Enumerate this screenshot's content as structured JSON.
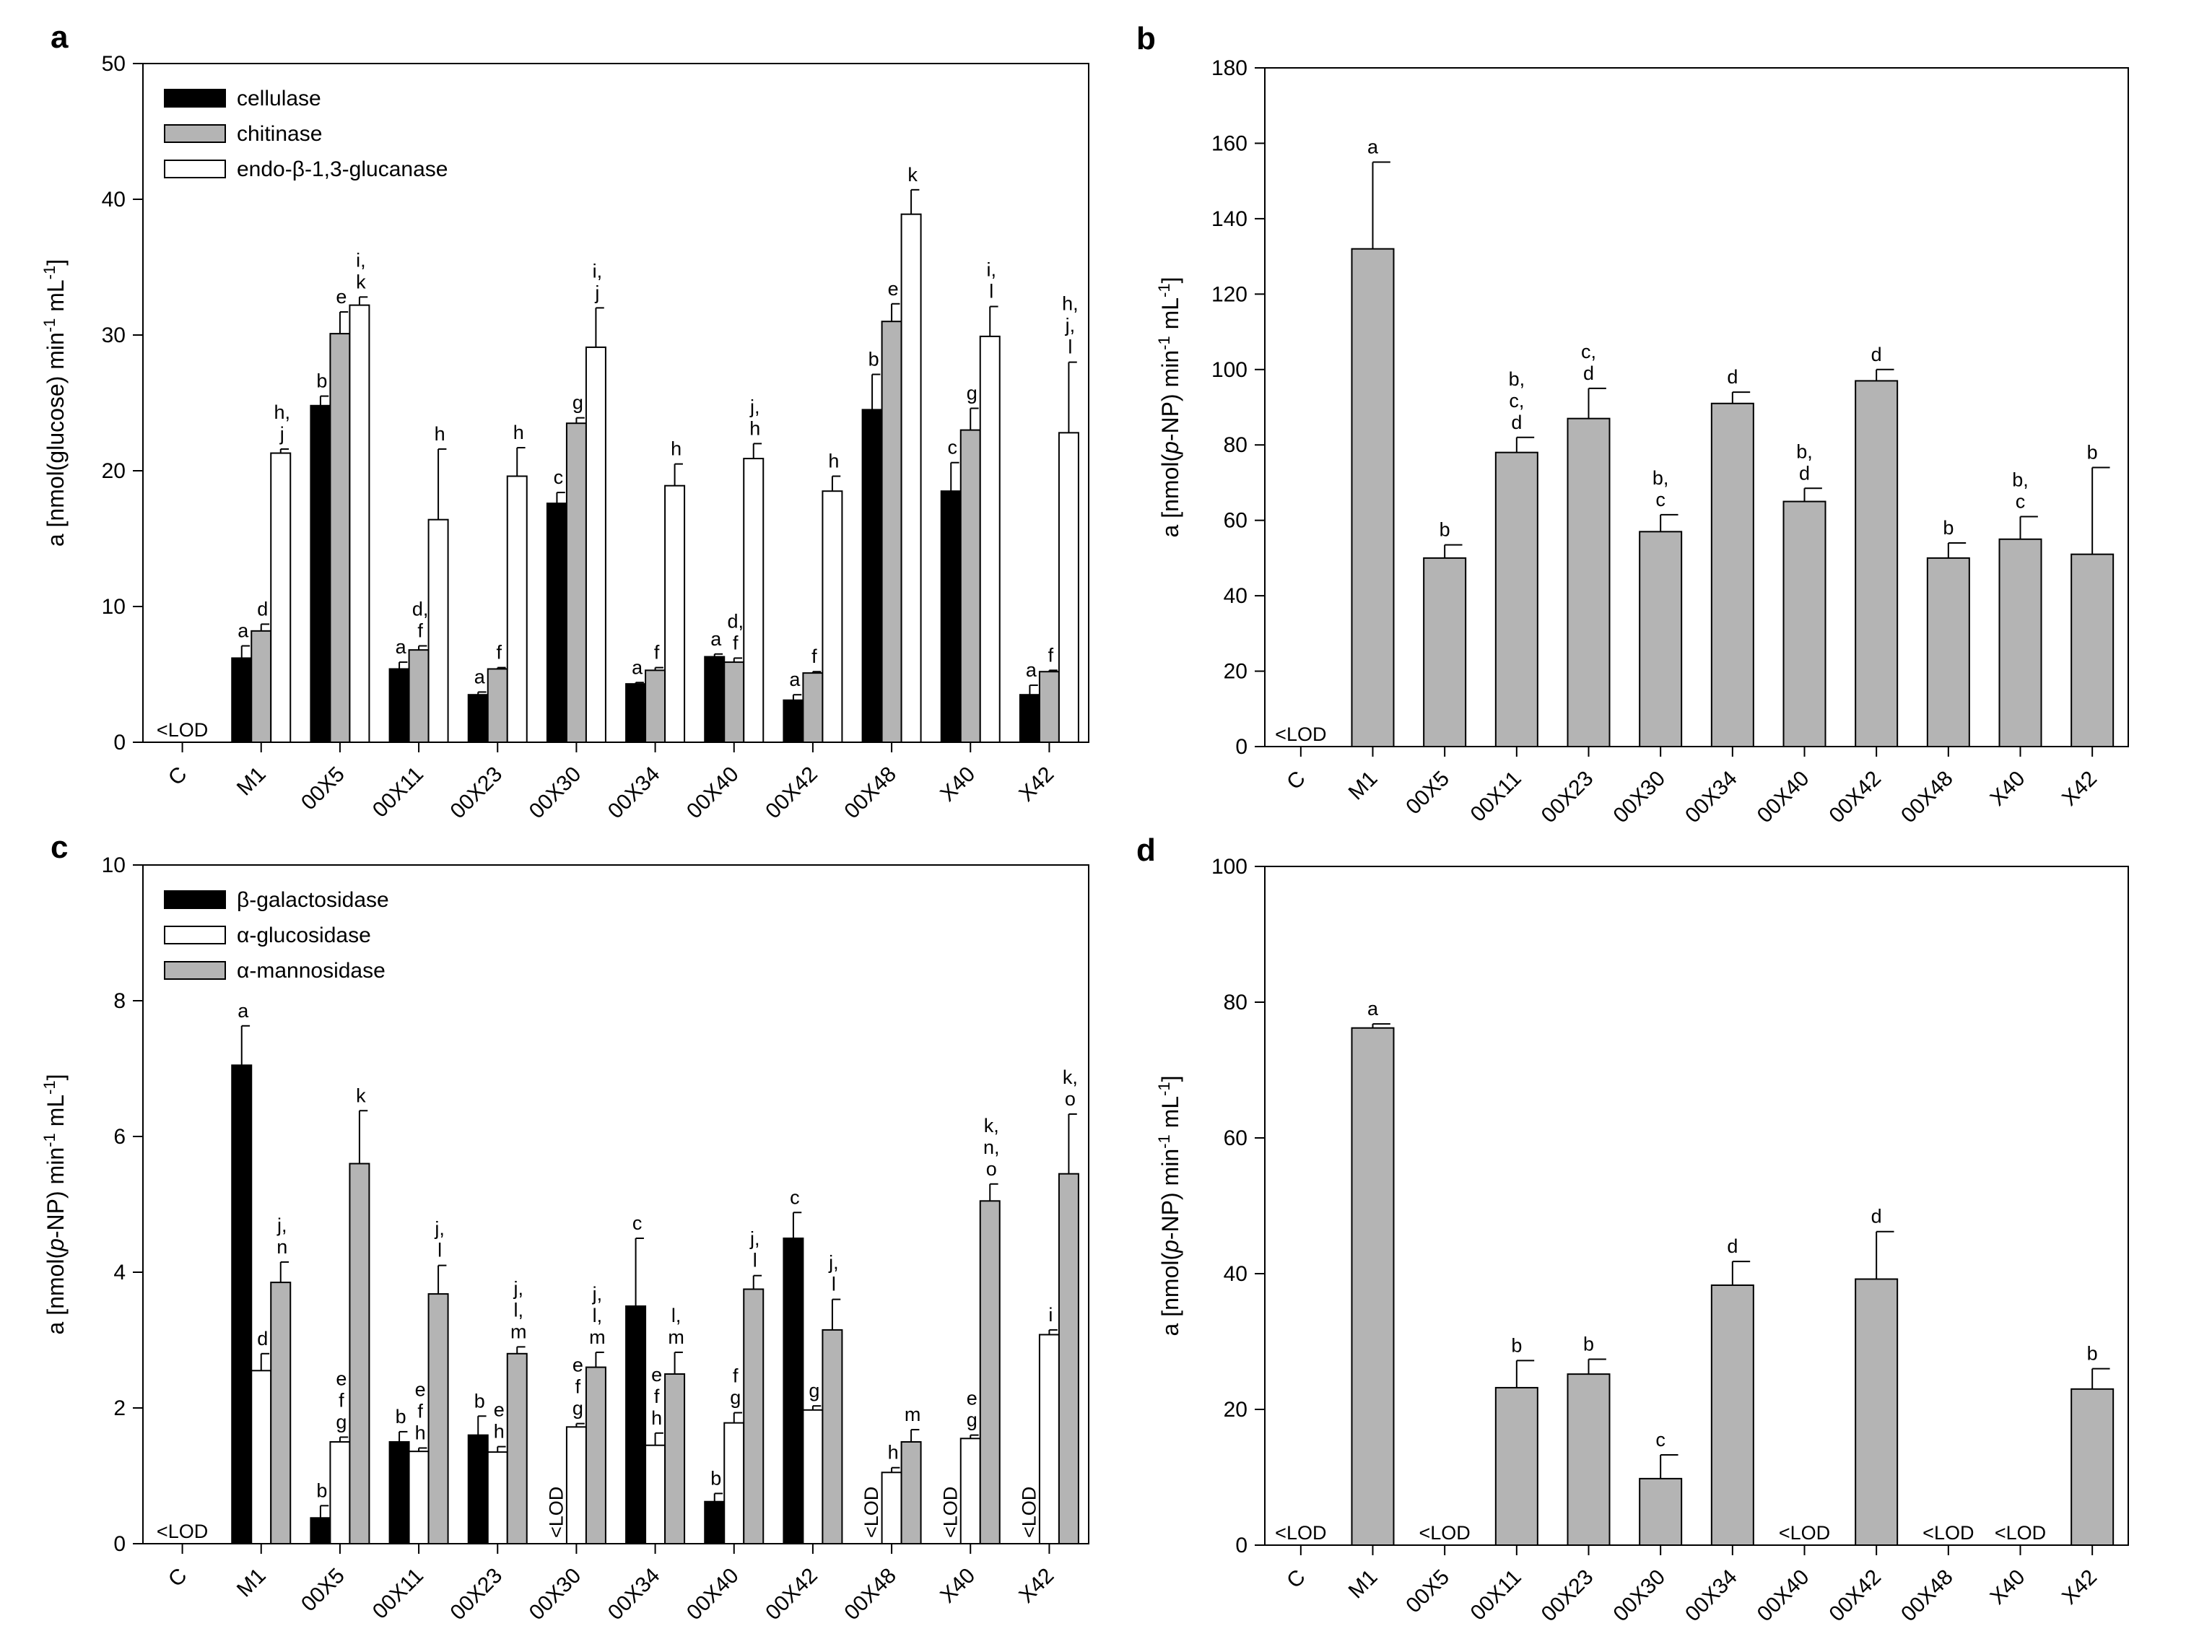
{
  "colors": {
    "black": "#000000",
    "gray": "#b4b4b4",
    "white": "#ffffff"
  },
  "panels": [
    {
      "letter": "a",
      "chart_data": {
        "type": "bar",
        "categories": [
          "C",
          "M1",
          "00X5",
          "00X11",
          "00X23",
          "00X30",
          "00X34",
          "00X40",
          "00X42",
          "00X48",
          "X40",
          "X42"
        ],
        "ylabel": {
          "pre": "a [nmol(glucose) min",
          "sup1": "-1",
          "mid": " mL",
          "sup2": "-1",
          "post": "]"
        },
        "ylim": [
          0,
          50
        ],
        "yticks": [
          0,
          10,
          20,
          30,
          40,
          50
        ],
        "legend_position": "top-left",
        "lod_label": "<LOD",
        "lod": [
          {
            "category": "C",
            "vertical": false
          }
        ],
        "series": [
          {
            "name": "cellulase",
            "color": "#000000",
            "values": [
              null,
              6.2,
              24.8,
              5.4,
              3.5,
              17.6,
              4.3,
              6.3,
              3.1,
              24.5,
              18.5,
              3.5
            ],
            "errors": [
              null,
              0.9,
              0.7,
              0.5,
              0.2,
              0.8,
              0.1,
              0.2,
              0.4,
              2.6,
              2.1,
              0.7
            ],
            "labels": [
              [],
              [
                "a"
              ],
              [
                "b"
              ],
              [
                "a"
              ],
              [
                "a"
              ],
              [
                "c"
              ],
              [
                "a"
              ],
              [
                "a"
              ],
              [
                "a"
              ],
              [
                "b"
              ],
              [
                "c"
              ],
              [
                "a"
              ]
            ]
          },
          {
            "name": "chitinase",
            "color": "#b4b4b4",
            "values": [
              null,
              8.2,
              30.1,
              6.8,
              5.4,
              23.5,
              5.3,
              5.9,
              5.1,
              31.0,
              23.0,
              5.2
            ],
            "errors": [
              null,
              0.5,
              1.6,
              0.3,
              0.1,
              0.4,
              0.2,
              0.3,
              0.1,
              1.3,
              1.6,
              0.1
            ],
            "labels": [
              [],
              [
                "d"
              ],
              [
                "e"
              ],
              [
                "d,",
                "f"
              ],
              [
                "f"
              ],
              [
                "g"
              ],
              [
                "f"
              ],
              [
                "d,",
                "f"
              ],
              [
                "f"
              ],
              [
                "e"
              ],
              [
                "g"
              ],
              [
                "f"
              ]
            ]
          },
          {
            "name": "endo-β-1,3-glucanase",
            "color": "#ffffff",
            "values": [
              null,
              21.3,
              32.2,
              16.4,
              19.6,
              29.1,
              18.9,
              20.9,
              18.5,
              38.9,
              29.9,
              22.8
            ],
            "errors": [
              null,
              0.3,
              0.6,
              5.2,
              2.1,
              2.9,
              1.6,
              1.1,
              1.1,
              1.8,
              2.2,
              5.2
            ],
            "labels": [
              [],
              [
                "h,",
                "j"
              ],
              [
                "i,",
                "k"
              ],
              [
                "h"
              ],
              [
                "h"
              ],
              [
                "i,",
                "j"
              ],
              [
                "h"
              ],
              [
                "j,",
                "h"
              ],
              [
                "h"
              ],
              [
                "k"
              ],
              [
                "i,",
                "l"
              ],
              [
                "h,",
                "j,",
                "l"
              ]
            ]
          }
        ]
      }
    },
    {
      "letter": "b",
      "chart_data": {
        "type": "bar",
        "categories": [
          "C",
          "M1",
          "00X5",
          "00X11",
          "00X23",
          "00X30",
          "00X34",
          "00X40",
          "00X42",
          "00X48",
          "X40",
          "X42"
        ],
        "ylabel": {
          "pre": "a [nmol(",
          "ital": "p",
          "pre2": "-NP) min",
          "sup1": "-1",
          "mid": " mL",
          "sup2": "-1",
          "post": "]"
        },
        "ylim": [
          0,
          180
        ],
        "yticks": [
          0,
          20,
          40,
          60,
          80,
          100,
          120,
          140,
          160,
          180
        ],
        "lod_label": "<LOD",
        "lod": [
          {
            "category": "C",
            "vertical": false
          }
        ],
        "series": [
          {
            "name": "",
            "color": "#b4b4b4",
            "values": [
              null,
              132,
              50,
              78,
              87,
              57,
              91,
              65,
              97,
              50,
              55,
              51
            ],
            "errors": [
              null,
              23,
              3.5,
              4,
              8,
              4.5,
              3,
              3.5,
              3,
              4,
              6,
              23
            ],
            "labels": [
              [],
              [
                "a"
              ],
              [
                "b"
              ],
              [
                "b,",
                "c,",
                "d"
              ],
              [
                "c,",
                "d"
              ],
              [
                "b,",
                "c"
              ],
              [
                "d"
              ],
              [
                "b,",
                "d"
              ],
              [
                "d"
              ],
              [
                "b"
              ],
              [
                "b,",
                "c"
              ],
              [
                "b"
              ]
            ]
          }
        ]
      }
    },
    {
      "letter": "c",
      "chart_data": {
        "type": "bar",
        "categories": [
          "C",
          "M1",
          "00X5",
          "00X11",
          "00X23",
          "00X30",
          "00X34",
          "00X40",
          "00X42",
          "00X48",
          "X40",
          "X42"
        ],
        "ylabel": {
          "pre": "a [nmol(",
          "ital": "p",
          "pre2": "-NP) min",
          "sup1": "-1",
          "mid": " mL",
          "sup2": "-1",
          "post": "]"
        },
        "ylim": [
          0,
          10
        ],
        "yticks": [
          0,
          2,
          4,
          6,
          8,
          10
        ],
        "legend_position": "top-left",
        "lod_label": "<LOD",
        "lod": [
          {
            "category": "C",
            "vertical": false
          },
          {
            "category": "00X30",
            "series": 0,
            "vertical": true
          },
          {
            "category": "00X48",
            "series": 0,
            "vertical": true
          },
          {
            "category": "X40",
            "series": 0,
            "vertical": true
          },
          {
            "category": "X42",
            "series": 0,
            "vertical": true
          }
        ],
        "series": [
          {
            "name": "β-galactosidase",
            "color": "#000000",
            "values": [
              null,
              7.05,
              0.38,
              1.5,
              1.6,
              null,
              3.5,
              0.62,
              4.5,
              null,
              null,
              null
            ],
            "errors": [
              null,
              0.58,
              0.18,
              0.15,
              0.28,
              null,
              1.0,
              0.12,
              0.38,
              null,
              null,
              null
            ],
            "labels": [
              [],
              [
                "a"
              ],
              [
                "b"
              ],
              [
                "b"
              ],
              [
                "b"
              ],
              [],
              [
                "c"
              ],
              [
                "b"
              ],
              [
                "c"
              ],
              [],
              [],
              []
            ]
          },
          {
            "name": "α-glucosidase",
            "color": "#ffffff",
            "values": [
              null,
              2.55,
              1.5,
              1.36,
              1.35,
              1.72,
              1.45,
              1.78,
              1.97,
              1.05,
              1.55,
              3.08
            ],
            "errors": [
              null,
              0.25,
              0.07,
              0.05,
              0.08,
              0.05,
              0.18,
              0.15,
              0.06,
              0.07,
              0.05,
              0.07
            ],
            "labels": [
              [],
              [
                "d"
              ],
              [
                "e",
                "f",
                "g"
              ],
              [
                "e",
                "f",
                "h"
              ],
              [
                "e",
                "h"
              ],
              [
                "e",
                "f",
                "g"
              ],
              [
                "e",
                "f",
                "h"
              ],
              [
                "f",
                "g"
              ],
              [
                "g"
              ],
              [
                "h"
              ],
              [
                "e",
                "g"
              ],
              [
                "i"
              ]
            ]
          },
          {
            "name": "α-mannosidase",
            "color": "#b4b4b4",
            "values": [
              null,
              3.85,
              5.6,
              3.68,
              2.8,
              2.6,
              2.5,
              3.75,
              3.15,
              1.5,
              5.05,
              5.45
            ],
            "errors": [
              null,
              0.3,
              0.78,
              0.42,
              0.1,
              0.22,
              0.32,
              0.2,
              0.45,
              0.18,
              0.25,
              0.88
            ],
            "labels": [
              [],
              [
                "j,",
                "n"
              ],
              [
                "k"
              ],
              [
                "j,",
                "l"
              ],
              [
                "j,",
                "l,",
                "m"
              ],
              [
                "j,",
                "l,",
                "m"
              ],
              [
                "l,",
                "m"
              ],
              [
                "j,",
                "l"
              ],
              [
                "j,",
                "l"
              ],
              [
                "m"
              ],
              [
                "k,",
                "n,",
                "o"
              ],
              [
                "k,",
                "o"
              ]
            ]
          }
        ]
      }
    },
    {
      "letter": "d",
      "chart_data": {
        "type": "bar",
        "categories": [
          "C",
          "M1",
          "00X5",
          "00X11",
          "00X23",
          "00X30",
          "00X34",
          "00X40",
          "00X42",
          "00X48",
          "X40",
          "X42"
        ],
        "ylabel": {
          "pre": "a [nmol(",
          "ital": "p",
          "pre2": "-NP) min",
          "sup1": "-1",
          "mid": " mL",
          "sup2": "-1",
          "post": "]"
        },
        "ylim": [
          0,
          100
        ],
        "yticks": [
          0,
          20,
          40,
          60,
          80,
          100
        ],
        "lod_label": "<LOD",
        "lod": [
          {
            "category": "C",
            "vertical": false
          },
          {
            "category": "00X5",
            "vertical": false
          },
          {
            "category": "00X40",
            "vertical": false
          },
          {
            "category": "00X48",
            "vertical": false
          },
          {
            "category": "X40",
            "vertical": false
          }
        ],
        "series": [
          {
            "name": "",
            "color": "#b4b4b4",
            "values": [
              null,
              76.2,
              null,
              23.2,
              25.2,
              9.8,
              38.3,
              null,
              39.2,
              null,
              null,
              23.0
            ],
            "errors": [
              null,
              0.6,
              null,
              4.0,
              2.2,
              3.5,
              3.5,
              null,
              7.0,
              null,
              null,
              3.0
            ],
            "labels": [
              [],
              [
                "a"
              ],
              [],
              [
                "b"
              ],
              [
                "b"
              ],
              [
                "c"
              ],
              [
                "d"
              ],
              [],
              [
                "d"
              ],
              [],
              [],
              [
                "b"
              ]
            ]
          }
        ]
      }
    }
  ]
}
